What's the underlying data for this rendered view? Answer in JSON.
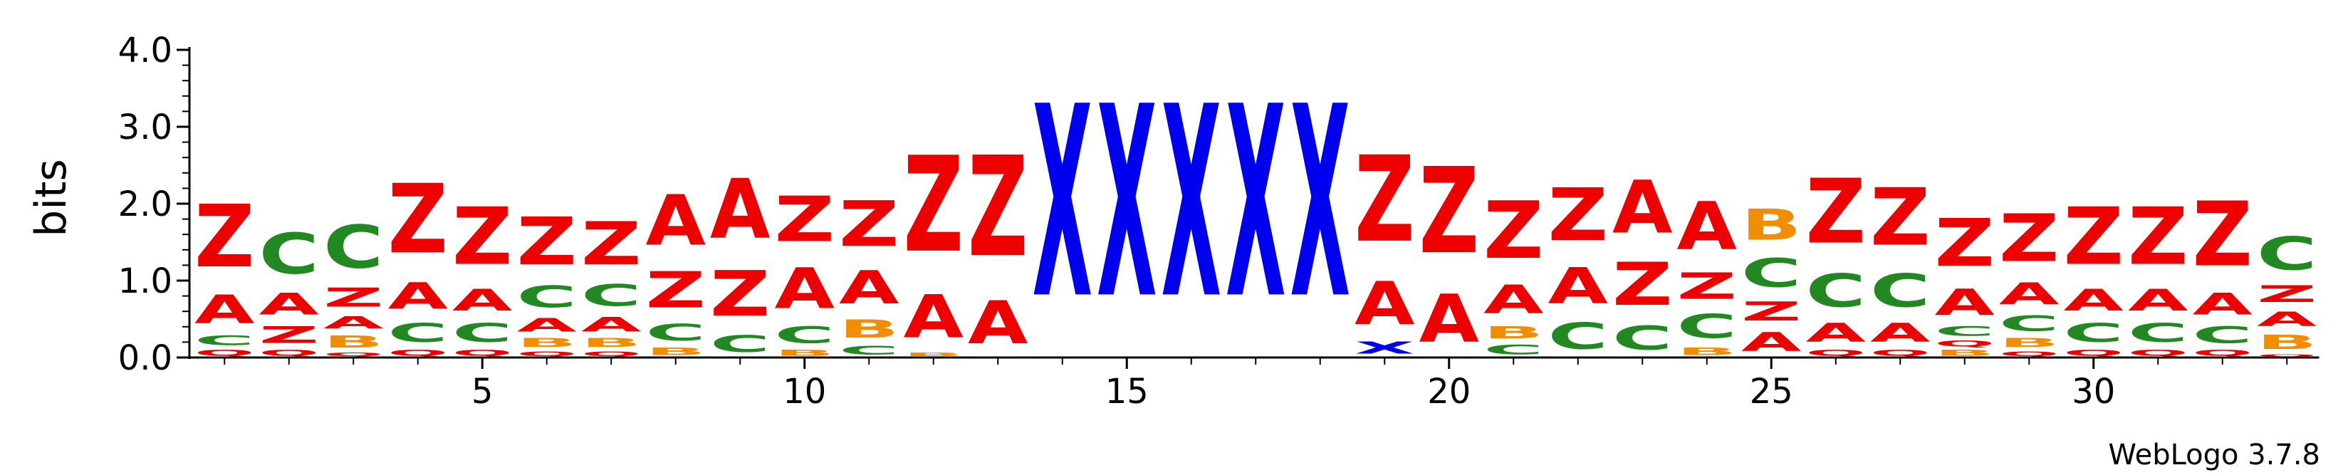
{
  "chart_data": {
    "type": "sequence-logo",
    "ylabel": "bits",
    "ylim": [
      0,
      4.0
    ],
    "yticks": [
      {
        "value": 0,
        "label": "0.0"
      },
      {
        "value": 1,
        "label": "1.0"
      },
      {
        "value": 2,
        "label": "2.0"
      },
      {
        "value": 3,
        "label": "3.0"
      },
      {
        "value": 4,
        "label": "4.0"
      }
    ],
    "xrange": [
      1,
      33
    ],
    "xticks": [
      {
        "value": 5,
        "label": "5"
      },
      {
        "value": 10,
        "label": "10"
      },
      {
        "value": 15,
        "label": "15"
      },
      {
        "value": 20,
        "label": "20"
      },
      {
        "value": 25,
        "label": "25"
      },
      {
        "value": 30,
        "label": "30"
      }
    ],
    "colors": {
      "Z": "#ee0000",
      "A": "#ee0000",
      "Q": "#ee0000",
      "C": "#228822",
      "B": "#f28c00",
      "X": "#0000ee",
      "axis": "#000000"
    },
    "positions": [
      {
        "pos": 1,
        "stack": [
          [
            "Q",
            0.12
          ],
          [
            "C",
            0.2
          ],
          [
            "A",
            0.6
          ],
          [
            "Z",
            1.3
          ]
        ]
      },
      {
        "pos": 2,
        "stack": [
          [
            "Q",
            0.12
          ],
          [
            "Z",
            0.35
          ],
          [
            "A",
            0.45
          ],
          [
            "C",
            0.85
          ]
        ]
      },
      {
        "pos": 3,
        "stack": [
          [
            "Q",
            0.08
          ],
          [
            "B",
            0.25
          ],
          [
            "A",
            0.25
          ],
          [
            "Z",
            0.4
          ],
          [
            "C",
            0.9
          ]
        ]
      },
      {
        "pos": 4,
        "stack": [
          [
            "Q",
            0.12
          ],
          [
            "C",
            0.4
          ],
          [
            "A",
            0.55
          ],
          [
            "Z",
            1.45
          ]
        ]
      },
      {
        "pos": 5,
        "stack": [
          [
            "Q",
            0.12
          ],
          [
            "C",
            0.4
          ],
          [
            "A",
            0.45
          ],
          [
            "Z",
            1.2
          ]
        ]
      },
      {
        "pos": 6,
        "stack": [
          [
            "Q",
            0.1
          ],
          [
            "B",
            0.18
          ],
          [
            "A",
            0.28
          ],
          [
            "C",
            0.45
          ],
          [
            "Z",
            1.0
          ]
        ]
      },
      {
        "pos": 7,
        "stack": [
          [
            "Q",
            0.1
          ],
          [
            "B",
            0.18
          ],
          [
            "A",
            0.3
          ],
          [
            "C",
            0.45
          ],
          [
            "Z",
            0.9
          ]
        ]
      },
      {
        "pos": 8,
        "stack": [
          [
            "B",
            0.15
          ],
          [
            "C",
            0.35
          ],
          [
            "Z",
            0.75
          ],
          [
            "A",
            1.05
          ]
        ]
      },
      {
        "pos": 9,
        "stack": [
          [
            "C",
            0.35
          ],
          [
            "Z",
            0.95
          ],
          [
            "A",
            1.25
          ]
        ]
      },
      {
        "pos": 10,
        "stack": [
          [
            "B",
            0.12
          ],
          [
            "C",
            0.35
          ],
          [
            "A",
            0.85
          ],
          [
            "Z",
            0.95
          ]
        ]
      },
      {
        "pos": 11,
        "stack": [
          [
            "C",
            0.18
          ],
          [
            "B",
            0.38
          ],
          [
            "A",
            0.7
          ],
          [
            "Z",
            0.95
          ]
        ]
      },
      {
        "pos": 12,
        "stack": [
          [
            "B",
            0.08
          ],
          [
            "A",
            0.9
          ],
          [
            "Z",
            2.0
          ]
        ]
      },
      {
        "pos": 13,
        "stack": [
          [
            "A",
            0.9
          ],
          [
            "Z",
            2.1
          ]
        ]
      },
      {
        "pos": 14,
        "stack": [
          [
            "X",
            4.0
          ]
        ]
      },
      {
        "pos": 15,
        "stack": [
          [
            "X",
            4.0
          ]
        ]
      },
      {
        "pos": 16,
        "stack": [
          [
            "X",
            4.0
          ]
        ]
      },
      {
        "pos": 17,
        "stack": [
          [
            "X",
            4.0
          ]
        ]
      },
      {
        "pos": 18,
        "stack": [
          [
            "X",
            4.0
          ]
        ]
      },
      {
        "pos": 19,
        "stack": [
          [
            "X",
            0.25
          ],
          [
            "A",
            0.9
          ],
          [
            "Z",
            1.8
          ]
        ]
      },
      {
        "pos": 20,
        "stack": [
          [
            "A",
            1.0
          ],
          [
            "Z",
            1.8
          ]
        ]
      },
      {
        "pos": 21,
        "stack": [
          [
            "C",
            0.2
          ],
          [
            "B",
            0.25
          ],
          [
            "A",
            0.6
          ],
          [
            "Z",
            1.2
          ]
        ]
      },
      {
        "pos": 22,
        "stack": [
          [
            "C",
            0.55
          ],
          [
            "A",
            0.75
          ],
          [
            "Z",
            1.1
          ]
        ]
      },
      {
        "pos": 23,
        "stack": [
          [
            "C",
            0.5
          ],
          [
            "Z",
            0.9
          ],
          [
            "A",
            1.1
          ]
        ]
      },
      {
        "pos": 24,
        "stack": [
          [
            "B",
            0.15
          ],
          [
            "C",
            0.5
          ],
          [
            "Z",
            0.55
          ],
          [
            "A",
            1.0
          ]
        ]
      },
      {
        "pos": 25,
        "stack": [
          [
            "A",
            0.4
          ],
          [
            "Z",
            0.4
          ],
          [
            "C",
            0.6
          ],
          [
            "B",
            0.65
          ]
        ]
      },
      {
        "pos": 26,
        "stack": [
          [
            "Q",
            0.12
          ],
          [
            "A",
            0.4
          ],
          [
            "C",
            0.7
          ],
          [
            "Z",
            1.35
          ]
        ]
      },
      {
        "pos": 27,
        "stack": [
          [
            "Q",
            0.12
          ],
          [
            "A",
            0.4
          ],
          [
            "C",
            0.7
          ],
          [
            "Z",
            1.2
          ]
        ]
      },
      {
        "pos": 28,
        "stack": [
          [
            "B",
            0.12
          ],
          [
            "Q",
            0.12
          ],
          [
            "C",
            0.2
          ],
          [
            "A",
            0.55
          ],
          [
            "Z",
            1.0
          ]
        ]
      },
      {
        "pos": 29,
        "stack": [
          [
            "Q",
            0.1
          ],
          [
            "B",
            0.18
          ],
          [
            "C",
            0.32
          ],
          [
            "A",
            0.45
          ],
          [
            "Z",
            1.0
          ]
        ]
      },
      {
        "pos": 30,
        "stack": [
          [
            "Q",
            0.12
          ],
          [
            "C",
            0.4
          ],
          [
            "A",
            0.45
          ],
          [
            "Z",
            1.2
          ]
        ]
      },
      {
        "pos": 31,
        "stack": [
          [
            "Q",
            0.12
          ],
          [
            "C",
            0.4
          ],
          [
            "A",
            0.45
          ],
          [
            "Z",
            1.2
          ]
        ]
      },
      {
        "pos": 32,
        "stack": [
          [
            "Q",
            0.12
          ],
          [
            "C",
            0.35
          ],
          [
            "A",
            0.45
          ],
          [
            "Z",
            1.35
          ]
        ]
      },
      {
        "pos": 33,
        "stack": [
          [
            "Q",
            0.05
          ],
          [
            "B",
            0.3
          ],
          [
            "A",
            0.3
          ],
          [
            "Z",
            0.35
          ],
          [
            "C",
            0.7
          ]
        ]
      }
    ]
  },
  "footer": {
    "credit": "WebLogo 3.7.8"
  }
}
